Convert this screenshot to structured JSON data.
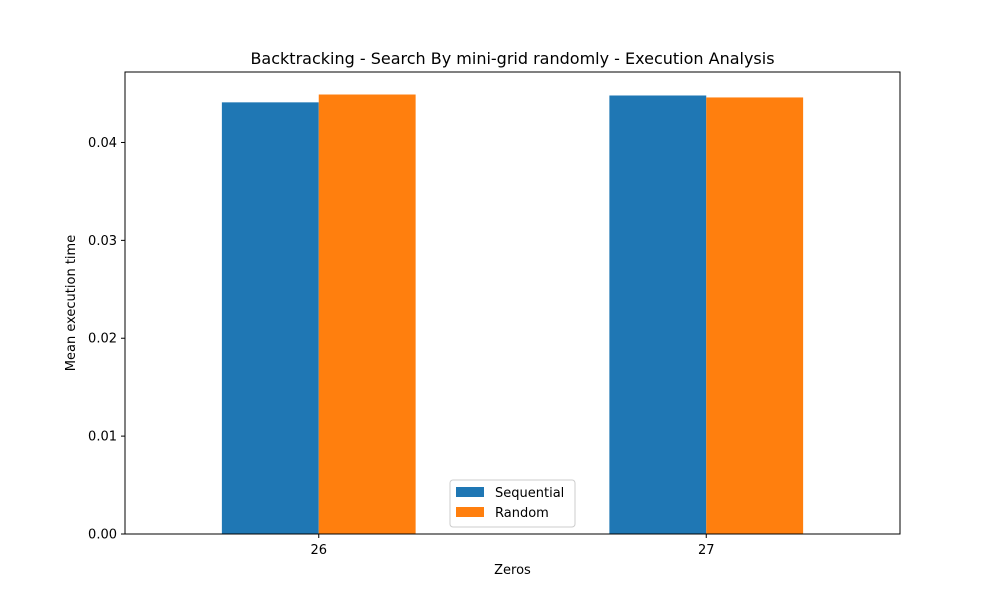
{
  "chart_data": {
    "type": "bar",
    "title": "Backtracking - Search By mini-grid randomly - Execution Analysis",
    "xlabel": "Zeros",
    "ylabel": "Mean execution time",
    "categories": [
      "26",
      "27"
    ],
    "series": [
      {
        "name": "Sequential",
        "color": "#1f77b4",
        "values": [
          0.0441,
          0.0448
        ]
      },
      {
        "name": "Random",
        "color": "#ff7f0e",
        "values": [
          0.0449,
          0.0446
        ]
      }
    ],
    "ylim": [
      0,
      0.0472
    ],
    "yticks": [
      "0.00",
      "0.01",
      "0.02",
      "0.03",
      "0.04"
    ],
    "ytick_values": [
      0,
      0.01,
      0.02,
      0.03,
      0.04
    ],
    "grid": false,
    "legend_position": "lower-center"
  }
}
